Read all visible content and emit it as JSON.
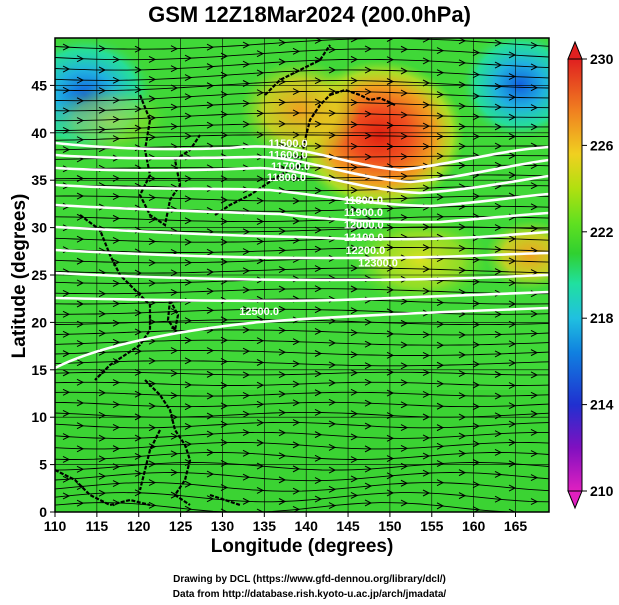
{
  "title": "GSM 12Z18Mar2024 (200.0hPa)",
  "x_axis": {
    "label": "Longitude (degrees)",
    "ticks": [
      "110",
      "115",
      "120",
      "125",
      "130",
      "135",
      "140",
      "145",
      "150",
      "155",
      "160",
      "165"
    ],
    "range": [
      110,
      169
    ]
  },
  "y_axis": {
    "label": "Latitude  (degrees)",
    "ticks": [
      "0",
      "5",
      "10",
      "15",
      "20",
      "25",
      "30",
      "35",
      "40",
      "45"
    ],
    "range": [
      0,
      50
    ]
  },
  "colorbar": {
    "labels": [
      "210",
      "214",
      "218",
      "222",
      "226",
      "230"
    ],
    "range": [
      210,
      230
    ],
    "colors": [
      "#e020c0",
      "#5010c0",
      "#2050e0",
      "#20a0e0",
      "#20e0c0",
      "#30d030",
      "#50e020",
      "#a0e010",
      "#e0e020",
      "#f0a020",
      "#f06020",
      "#e02020"
    ]
  },
  "contour_labels": [
    {
      "text": "11500.0",
      "lon": 135.5,
      "lat": 38.5
    },
    {
      "text": "11600.0",
      "lon": 135.5,
      "lat": 37.3
    },
    {
      "text": "11700.0",
      "lon": 135.8,
      "lat": 36.1
    },
    {
      "text": "11800.0",
      "lon": 135.3,
      "lat": 34.9
    },
    {
      "text": "11800.0",
      "lon": 144.5,
      "lat": 32.5
    },
    {
      "text": "11900.0",
      "lon": 144.5,
      "lat": 31.2
    },
    {
      "text": "12000.0",
      "lon": 144.5,
      "lat": 29.9
    },
    {
      "text": "12100.0",
      "lon": 144.5,
      "lat": 28.6
    },
    {
      "text": "12200.0",
      "lon": 144.7,
      "lat": 27.2
    },
    {
      "text": "12300.0",
      "lon": 146.2,
      "lat": 25.9
    },
    {
      "text": "12500.0",
      "lon": 132.0,
      "lat": 20.8
    }
  ],
  "credits": {
    "line1": "Drawing by DCL (https://www.gfd-dennou.org/library/dcl/)",
    "line2": "Data from http://database.rish.kyoto-u.ac.jp/arch/jmadata/"
  }
}
